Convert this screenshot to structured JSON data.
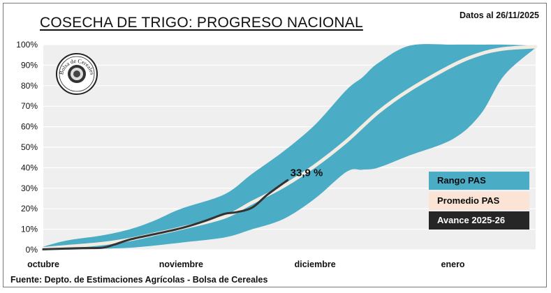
{
  "header": {
    "title": "COSECHA DE TRIGO: PROGRESO NACIONAL",
    "date": "Datos al 26/11/2025"
  },
  "footer": {
    "source": "Fuente: Depto. de Estimaciones Agrícolas - Bolsa de Cereales"
  },
  "logo": {
    "text": "Bolsa de Cereales"
  },
  "colors": {
    "plot_bg": "#efefef",
    "range": "#4bacc6",
    "average": "#f2ece2",
    "current": "#333333",
    "grid": "#ffffff"
  },
  "legend": {
    "range_label": "Rango PAS",
    "average_label": "Promedio PAS",
    "current_label": "Avance 2025-26"
  },
  "chart_data": {
    "type": "area",
    "x_unit": "day of season (0 = start of octubre)",
    "xlim": [
      0,
      125
    ],
    "ylim": [
      0,
      100
    ],
    "y_ticks": [
      "0%",
      "10%",
      "20%",
      "30%",
      "40%",
      "50%",
      "60%",
      "70%",
      "80%",
      "90%",
      "100%"
    ],
    "x_ticks": [
      {
        "label": "octubre",
        "x": 0
      },
      {
        "label": "noviembre",
        "x": 35
      },
      {
        "label": "diciembre",
        "x": 69
      },
      {
        "label": "enero",
        "x": 104
      }
    ],
    "grid": true,
    "legend_position": "right",
    "series": [
      {
        "name": "Rango PAS",
        "kind": "band",
        "points": [
          {
            "x": 0,
            "low": 0,
            "high": 1.5
          },
          {
            "x": 6,
            "low": 0,
            "high": 4.5
          },
          {
            "x": 15,
            "low": 0.5,
            "high": 7
          },
          {
            "x": 22,
            "low": 1,
            "high": 10
          },
          {
            "x": 28,
            "low": 2,
            "high": 14
          },
          {
            "x": 35,
            "low": 3.5,
            "high": 20
          },
          {
            "x": 46,
            "low": 6,
            "high": 27
          },
          {
            "x": 53,
            "low": 10,
            "high": 37
          },
          {
            "x": 61,
            "low": 15,
            "high": 48
          },
          {
            "x": 69,
            "low": 25,
            "high": 61
          },
          {
            "x": 77,
            "low": 38,
            "high": 78
          },
          {
            "x": 81,
            "low": 39,
            "high": 84
          },
          {
            "x": 85,
            "low": 40,
            "high": 91
          },
          {
            "x": 93,
            "low": 46,
            "high": 99.5
          },
          {
            "x": 104,
            "low": 54,
            "high": 100
          },
          {
            "x": 111,
            "low": 66,
            "high": 100
          },
          {
            "x": 117,
            "low": 85,
            "high": 100
          },
          {
            "x": 125,
            "low": 98.5,
            "high": 99.5
          }
        ]
      },
      {
        "name": "Promedio PAS",
        "kind": "line",
        "points": [
          [
            0,
            0.5
          ],
          [
            6,
            1.5
          ],
          [
            15,
            3
          ],
          [
            22,
            5
          ],
          [
            28,
            7.5
          ],
          [
            35,
            10.5
          ],
          [
            46,
            16
          ],
          [
            53,
            23
          ],
          [
            61,
            31
          ],
          [
            69,
            41
          ],
          [
            77,
            53
          ],
          [
            85,
            67
          ],
          [
            93,
            78
          ],
          [
            104,
            90
          ],
          [
            111,
            95.5
          ],
          [
            117,
            98
          ],
          [
            125,
            99
          ]
        ]
      },
      {
        "name": "Avance 2025-26",
        "kind": "line",
        "points": [
          [
            0,
            0.2
          ],
          [
            6,
            0.6
          ],
          [
            10,
            0.8
          ],
          [
            15,
            1
          ],
          [
            18,
            2.5
          ],
          [
            22,
            5
          ],
          [
            28,
            7.5
          ],
          [
            35,
            10.5
          ],
          [
            41,
            14
          ],
          [
            46,
            17.5
          ],
          [
            49,
            18.3
          ],
          [
            53,
            20.5
          ],
          [
            57,
            27
          ],
          [
            62,
            33.9
          ]
        ],
        "end_label": "33,9 %"
      }
    ]
  }
}
